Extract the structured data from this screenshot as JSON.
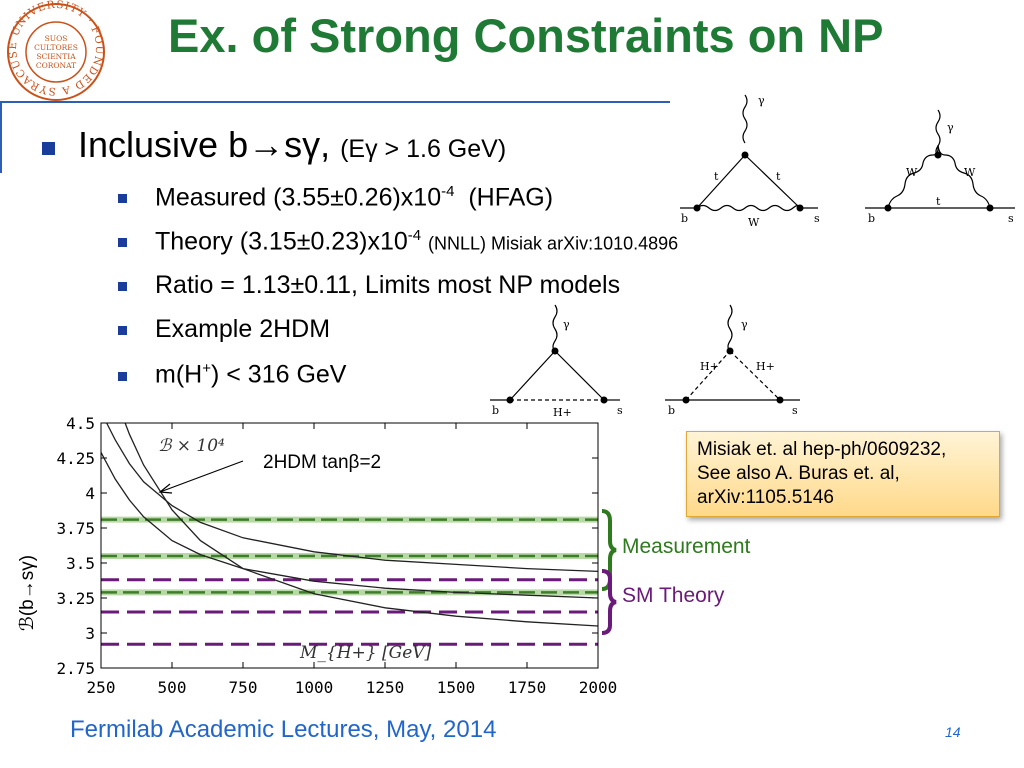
{
  "slide": {
    "title": "Ex. of Strong Constraints on NP",
    "logo": {
      "ring_text": "SYRACUSE UNIVERSITY · FOUNDED AD 1870",
      "center_text": "SUOS CULTORES SCIENTIA CORONAT"
    },
    "bullet_main": {
      "text": "Inclusive b→sγ,",
      "detail": "(Eγ > 1.6 GeV)"
    },
    "bullets": [
      {
        "text": "Measured (3.55±0.26)x10",
        "sup": "-4",
        "tail": "(HFAG)"
      },
      {
        "text": "Theory (3.15±0.23)x10",
        "sup": "-4",
        "tail": "(NNLL) Misiak arXiv:1010.4896"
      },
      {
        "text": "Ratio = 1.13±0.11, Limits most NP models"
      },
      {
        "text": "Example 2HDM"
      },
      {
        "text": "m(H",
        "sup": "+",
        "tail": ") < 316 GeV"
      }
    ],
    "citation": [
      "Misiak et. al hep-ph/0609232,",
      "See also A. Buras et. al,",
      "arXiv:1105.5146"
    ],
    "measurement_label": "Measurement",
    "theory_label": "SM Theory",
    "footer": "Fermilab Academic Lectures, May, 2014",
    "page_number": "14",
    "diagrams": [
      {
        "labels": [
          "γ",
          "t",
          "t",
          "b",
          "W",
          "s"
        ]
      },
      {
        "labels": [
          "γ",
          "W",
          "W",
          "b",
          "t",
          "s"
        ]
      },
      {
        "labels": [
          "γ",
          "b",
          "H+",
          "s"
        ]
      },
      {
        "labels": [
          "γ",
          "H+",
          "H+",
          "b",
          "s"
        ]
      }
    ],
    "colors": {
      "title": "#1f7a35",
      "bullet": "#1a3d9c",
      "measurement": "#3f7d2a",
      "theory": "#6a1a78",
      "footer": "#2266cc"
    }
  },
  "chart_data": {
    "type": "line",
    "ylabel": "ℬ(b→sγ)",
    "inner_label": "ℬ × 10⁴",
    "xlabel": "M_{H+} [GeV]",
    "annotation": "2HDM tanβ=2",
    "xlim": [
      250,
      2000
    ],
    "ylim": [
      2.75,
      4.5
    ],
    "x_ticks": [
      "250",
      "500",
      "750",
      "1000",
      "1250",
      "1500",
      "1750",
      "2000"
    ],
    "y_ticks": [
      "4.5",
      "4.25",
      "4",
      "3.75",
      "3.5",
      "3.25",
      "3",
      "2.75"
    ],
    "series": [
      {
        "x": [
          270,
          300,
          350,
          400,
          500,
          600,
          750,
          1000,
          1250,
          1500,
          1750,
          2000
        ],
        "values": [
          4.5,
          4.38,
          4.21,
          4.08,
          3.91,
          3.79,
          3.68,
          3.58,
          3.52,
          3.49,
          3.46,
          3.44
        ]
      },
      {
        "x": [
          250,
          300,
          350,
          400,
          500,
          600,
          750,
          1000,
          1250,
          1500,
          1750,
          2000
        ],
        "values": [
          4.29,
          4.1,
          3.95,
          3.83,
          3.66,
          3.56,
          3.46,
          3.37,
          3.32,
          3.29,
          3.27,
          3.25
        ]
      },
      {
        "x": [
          335,
          350,
          400,
          500,
          600,
          750,
          1000,
          1250,
          1500,
          1750,
          2000
        ],
        "values": [
          4.5,
          4.42,
          4.2,
          3.88,
          3.66,
          3.46,
          3.28,
          3.18,
          3.12,
          3.08,
          3.05
        ]
      }
    ],
    "bands": {
      "measurement": [
        3.81,
        3.55,
        3.29
      ],
      "theory": [
        3.38,
        3.15,
        2.92
      ]
    }
  }
}
